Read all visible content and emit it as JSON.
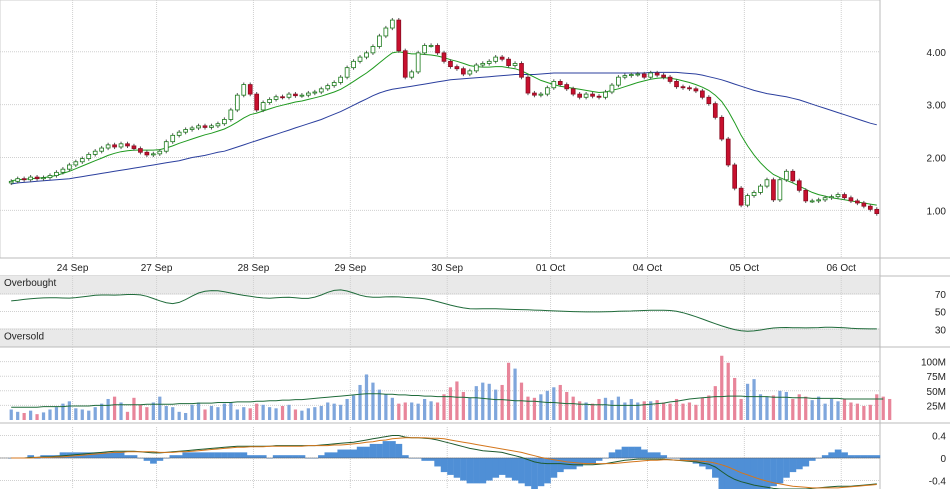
{
  "chart_data": [
    {
      "type": "candlestick",
      "panel": "price",
      "y_ticks": [
        "4.00",
        "3.00",
        "2.00",
        "1.00"
      ],
      "y_tick_values": [
        4,
        3,
        2,
        1
      ],
      "ylim": [
        0.1,
        4.98
      ],
      "x_labels": [
        "24 Sep",
        "27 Sep",
        "28 Sep",
        "29 Sep",
        "30 Sep",
        "01 Oct",
        "04 Oct",
        "05 Oct",
        "06 Oct"
      ],
      "closes": [
        1.55,
        1.6,
        1.58,
        1.63,
        1.6,
        1.62,
        1.66,
        1.72,
        1.78,
        1.86,
        1.92,
        1.98,
        2.06,
        2.12,
        2.18,
        2.24,
        2.2,
        2.26,
        2.22,
        2.17,
        2.1,
        2.05,
        2.07,
        2.12,
        2.3,
        2.42,
        2.48,
        2.53,
        2.56,
        2.6,
        2.57,
        2.6,
        2.64,
        2.72,
        2.9,
        3.18,
        3.38,
        3.2,
        2.9,
        3.04,
        3.1,
        3.15,
        3.14,
        3.2,
        3.17,
        3.18,
        3.22,
        3.24,
        3.3,
        3.36,
        3.42,
        3.52,
        3.7,
        3.82,
        3.9,
        3.98,
        4.1,
        4.3,
        4.45,
        4.6,
        4.02,
        3.52,
        3.62,
        3.98,
        4.12,
        4.12,
        3.98,
        3.82,
        3.72,
        3.68,
        3.58,
        3.64,
        3.75,
        3.78,
        3.82,
        3.9,
        3.86,
        3.74,
        3.78,
        3.52,
        3.22,
        3.18,
        3.2,
        3.32,
        3.44,
        3.38,
        3.3,
        3.2,
        3.14,
        3.2,
        3.16,
        3.14,
        3.24,
        3.37,
        3.52,
        3.55,
        3.57,
        3.58,
        3.52,
        3.6,
        3.56,
        3.52,
        3.44,
        3.34,
        3.32,
        3.3,
        3.26,
        3.14,
        3.02,
        2.76,
        2.35,
        1.86,
        1.42,
        1.1,
        1.28,
        1.34,
        1.46,
        1.58,
        1.2,
        1.58,
        1.74,
        1.56,
        1.38,
        1.18,
        1.18,
        1.2,
        1.24,
        1.26,
        1.3,
        1.24,
        1.18,
        1.14,
        1.08,
        1.02,
        0.94
      ],
      "series": [
        {
          "name": "short moving average",
          "values": [
            1.56,
            1.58,
            1.59,
            1.6,
            1.61,
            1.62,
            1.64,
            1.66,
            1.7,
            1.74,
            1.79,
            1.84,
            1.89,
            1.94,
            1.99,
            2.04,
            2.08,
            2.11,
            2.13,
            2.14,
            2.14,
            2.14,
            2.14,
            2.15,
            2.18,
            2.22,
            2.27,
            2.31,
            2.35,
            2.39,
            2.43,
            2.46,
            2.5,
            2.54,
            2.6,
            2.67,
            2.75,
            2.81,
            2.84,
            2.88,
            2.92,
            2.96,
            2.99,
            3.02,
            3.05,
            3.07,
            3.1,
            3.13,
            3.16,
            3.2,
            3.24,
            3.29,
            3.36,
            3.44,
            3.52,
            3.6,
            3.69,
            3.79,
            3.89,
            3.98,
            4.0,
            3.98,
            3.96,
            3.96,
            3.95,
            3.94,
            3.92,
            3.89,
            3.85,
            3.82,
            3.78,
            3.74,
            3.72,
            3.71,
            3.71,
            3.72,
            3.72,
            3.7,
            3.68,
            3.64,
            3.58,
            3.52,
            3.46,
            3.42,
            3.38,
            3.35,
            3.33,
            3.31,
            3.29,
            3.27,
            3.25,
            3.23,
            3.24,
            3.27,
            3.3,
            3.34,
            3.38,
            3.42,
            3.45,
            3.48,
            3.5,
            3.51,
            3.5,
            3.48,
            3.45,
            3.42,
            3.38,
            3.33,
            3.27,
            3.18,
            3.06,
            2.88,
            2.66,
            2.42,
            2.22,
            2.05,
            1.9,
            1.78,
            1.68,
            1.62,
            1.57,
            1.52,
            1.46,
            1.4,
            1.34,
            1.3,
            1.27,
            1.24,
            1.22,
            1.2,
            1.18,
            1.16,
            1.14,
            1.12,
            1.1
          ]
        },
        {
          "name": "long moving average",
          "values": [
            1.5,
            1.52,
            1.53,
            1.54,
            1.55,
            1.56,
            1.57,
            1.58,
            1.59,
            1.6,
            1.62,
            1.64,
            1.66,
            1.68,
            1.7,
            1.72,
            1.74,
            1.76,
            1.78,
            1.8,
            1.82,
            1.84,
            1.86,
            1.88,
            1.9,
            1.92,
            1.94,
            1.97,
            2.0,
            2.02,
            2.04,
            2.07,
            2.1,
            2.12,
            2.16,
            2.2,
            2.24,
            2.28,
            2.32,
            2.36,
            2.4,
            2.44,
            2.48,
            2.52,
            2.56,
            2.6,
            2.64,
            2.68,
            2.72,
            2.77,
            2.82,
            2.87,
            2.93,
            2.99,
            3.05,
            3.11,
            3.17,
            3.22,
            3.26,
            3.29,
            3.31,
            3.33,
            3.35,
            3.37,
            3.39,
            3.41,
            3.43,
            3.45,
            3.47,
            3.48,
            3.49,
            3.5,
            3.51,
            3.52,
            3.53,
            3.54,
            3.55,
            3.56,
            3.57,
            3.57,
            3.57,
            3.57,
            3.58,
            3.59,
            3.6,
            3.6,
            3.6,
            3.6,
            3.6,
            3.6,
            3.6,
            3.6,
            3.6,
            3.6,
            3.6,
            3.6,
            3.6,
            3.6,
            3.6,
            3.61,
            3.61,
            3.61,
            3.61,
            3.61,
            3.6,
            3.59,
            3.58,
            3.56,
            3.53,
            3.5,
            3.47,
            3.43,
            3.39,
            3.35,
            3.31,
            3.27,
            3.24,
            3.21,
            3.19,
            3.17,
            3.15,
            3.12,
            3.09,
            3.05,
            3.01,
            2.97,
            2.93,
            2.89,
            2.85,
            2.81,
            2.77,
            2.73,
            2.69,
            2.65,
            2.62
          ]
        }
      ]
    },
    {
      "type": "line",
      "panel": "oscillator",
      "y_ticks": [
        "70",
        "50",
        "30"
      ],
      "y_tick_values": [
        70,
        50,
        30
      ],
      "ylim": [
        10,
        90
      ],
      "bands": {
        "top": "Overbought",
        "bottom": "Oversold"
      },
      "values": [
        62,
        62.6,
        63.6,
        64.3,
        64.9,
        65.3,
        65.4,
        65.4,
        65.2,
        65.1,
        65.7,
        66.5,
        67.4,
        68.2,
        68.6,
        68.6,
        68.5,
        68.7,
        69.1,
        69.1,
        68.7,
        67.1,
        64.6,
        62.1,
        59.9,
        58.9,
        60.2,
        63.4,
        67.4,
        70.9,
        72.8,
        73.5,
        73.3,
        72.3,
        70.8,
        69.4,
        68.1,
        67.1,
        66.1,
        65.3,
        65,
        65.4,
        65.9,
        66,
        65.4,
        64.8,
        64.8,
        66.2,
        68.6,
        71.6,
        73.8,
        74.3,
        73.1,
        70.8,
        68.4,
        66.8,
        66.1,
        66.1,
        66.5,
        66.6,
        66.4,
        65.9,
        65.5,
        65.1,
        64.4,
        63,
        61.2,
        59.1,
        57.2,
        55.5,
        54.1,
        53.2,
        52.9,
        53,
        53.1,
        53,
        52.8,
        52.5,
        52.3,
        52.1,
        51.9,
        51.6,
        51.3,
        51,
        50.7,
        50.4,
        50.1,
        49.9,
        49.7,
        49.6,
        49.6,
        49.6,
        49.7,
        49.9,
        50.2,
        50.4,
        50.6,
        50.9,
        51.1,
        51.3,
        51.5,
        51.5,
        51.1,
        50.2,
        48.6,
        46.5,
        44.1,
        41.5,
        38.9,
        36.3,
        33.8,
        31.5,
        29.6,
        28.3,
        27.8,
        28.1,
        29.2,
        30.4,
        31.4,
        31.9,
        32,
        31.8,
        31.6,
        31.5,
        31.7,
        31.9,
        32.2,
        32.2,
        32,
        31.6,
        31.1,
        30.7,
        30.5,
        30.4,
        30.4
      ]
    },
    {
      "type": "bar",
      "panel": "volume",
      "y_ticks": [
        "100M",
        "75M",
        "50M",
        "25M"
      ],
      "y_tick_values": [
        100,
        75,
        50,
        25
      ],
      "ylim": [
        0,
        125
      ],
      "bar_colors": [
        "up",
        "down"
      ],
      "values": [
        18,
        14,
        12,
        16,
        10,
        13,
        18,
        22,
        28,
        32,
        20,
        18,
        16,
        22,
        28,
        36,
        40,
        30,
        14,
        38,
        26,
        22,
        30,
        40,
        24,
        22,
        14,
        12,
        26,
        30,
        18,
        24,
        22,
        28,
        30,
        18,
        22,
        20,
        28,
        26,
        22,
        20,
        24,
        26,
        18,
        16,
        20,
        22,
        24,
        30,
        28,
        26,
        36,
        42,
        60,
        78,
        64,
        52,
        44,
        38,
        28,
        30,
        30,
        28,
        36,
        32,
        30,
        44,
        56,
        66,
        48,
        38,
        58,
        64,
        62,
        52,
        60,
        98,
        88,
        64,
        40,
        38,
        44,
        50,
        56,
        60,
        48,
        40,
        32,
        30,
        28,
        36,
        38,
        34,
        40,
        30,
        36,
        30,
        32,
        32,
        34,
        30,
        28,
        36,
        28,
        30,
        26,
        38,
        42,
        58,
        110,
        98,
        72,
        36,
        62,
        70,
        44,
        40,
        42,
        50,
        48,
        36,
        44,
        40,
        34,
        40,
        28,
        36,
        32,
        36,
        30,
        28,
        24,
        26,
        44,
        40,
        36
      ],
      "moving_average": [
        22,
        22,
        22,
        22,
        22,
        23,
        23,
        23,
        23,
        24,
        24,
        24,
        24,
        25,
        25,
        25,
        26,
        26,
        26,
        26,
        26,
        27,
        27,
        27,
        27,
        27,
        28,
        28,
        28,
        29,
        29,
        29,
        30,
        30,
        30,
        31,
        31,
        31,
        32,
        32,
        33,
        33,
        34,
        34,
        35,
        35,
        36,
        37,
        38,
        39,
        40,
        41,
        42,
        43,
        44,
        45,
        45,
        45,
        44,
        44,
        43,
        43,
        42,
        42,
        41,
        41,
        40,
        40,
        40,
        39,
        39,
        38,
        38,
        37,
        36,
        35,
        35,
        34,
        33,
        33,
        32,
        32,
        31,
        30,
        30,
        29,
        28,
        28,
        27,
        27,
        26,
        26,
        26,
        25,
        25,
        25,
        25,
        25,
        26,
        27,
        28,
        29,
        31,
        32,
        34,
        36,
        37,
        38,
        39,
        40,
        40,
        41,
        41,
        41,
        40,
        40,
        40,
        40,
        39,
        39,
        39,
        38,
        38,
        38,
        37,
        37,
        37,
        37,
        37,
        36,
        36,
        36,
        36,
        36,
        36,
        36
      ]
    },
    {
      "type": "macd",
      "panel": "macd",
      "y_ticks": [
        "0.4",
        "0",
        "-0.4"
      ],
      "y_tick_values": [
        0.4,
        0,
        -0.4
      ],
      "ylim": [
        -0.55,
        0.55
      ],
      "series": [
        {
          "name": "macd",
          "values": [
            0,
            0,
            0,
            0.01,
            0.01,
            0.02,
            0.02,
            0.03,
            0.04,
            0.05,
            0.06,
            0.07,
            0.08,
            0.09,
            0.1,
            0.11,
            0.12,
            0.12,
            0.12,
            0.12,
            0.11,
            0.1,
            0.09,
            0.09,
            0.1,
            0.11,
            0.12,
            0.13,
            0.14,
            0.15,
            0.16,
            0.17,
            0.18,
            0.19,
            0.2,
            0.21,
            0.21,
            0.21,
            0.21,
            0.21,
            0.21,
            0.22,
            0.22,
            0.22,
            0.22,
            0.22,
            0.22,
            0.22,
            0.23,
            0.24,
            0.25,
            0.26,
            0.27,
            0.28,
            0.3,
            0.32,
            0.34,
            0.36,
            0.38,
            0.4,
            0.4,
            0.37,
            0.36,
            0.36,
            0.35,
            0.34,
            0.32,
            0.29,
            0.26,
            0.23,
            0.2,
            0.17,
            0.15,
            0.13,
            0.12,
            0.11,
            0.1,
            0.07,
            0.04,
            0.01,
            -0.03,
            -0.07,
            -0.09,
            -0.1,
            -0.1,
            -0.1,
            -0.11,
            -0.12,
            -0.12,
            -0.12,
            -0.12,
            -0.11,
            -0.1,
            -0.08,
            -0.06,
            -0.04,
            -0.03,
            -0.02,
            -0.02,
            -0.02,
            -0.02,
            -0.02,
            -0.03,
            -0.04,
            -0.05,
            -0.06,
            -0.07,
            -0.09,
            -0.11,
            -0.16,
            -0.24,
            -0.32,
            -0.38,
            -0.42,
            -0.45,
            -0.48,
            -0.5,
            -0.52,
            -0.54,
            -0.55,
            -0.55,
            -0.55,
            -0.55,
            -0.55,
            -0.54,
            -0.53,
            -0.52,
            -0.51,
            -0.5,
            -0.5,
            -0.5,
            -0.49,
            -0.48,
            -0.47,
            -0.46
          ]
        },
        {
          "name": "signal",
          "values": [
            0,
            0,
            0,
            0,
            0.01,
            0.01,
            0.01,
            0.02,
            0.02,
            0.03,
            0.04,
            0.05,
            0.06,
            0.07,
            0.08,
            0.09,
            0.1,
            0.1,
            0.11,
            0.11,
            0.11,
            0.11,
            0.11,
            0.1,
            0.1,
            0.1,
            0.11,
            0.11,
            0.12,
            0.13,
            0.14,
            0.15,
            0.16,
            0.17,
            0.18,
            0.19,
            0.19,
            0.2,
            0.2,
            0.2,
            0.21,
            0.21,
            0.21,
            0.21,
            0.21,
            0.21,
            0.22,
            0.22,
            0.22,
            0.22,
            0.23,
            0.23,
            0.24,
            0.25,
            0.26,
            0.28,
            0.29,
            0.31,
            0.32,
            0.34,
            0.35,
            0.36,
            0.36,
            0.36,
            0.36,
            0.35,
            0.35,
            0.34,
            0.32,
            0.3,
            0.28,
            0.26,
            0.24,
            0.22,
            0.2,
            0.18,
            0.16,
            0.14,
            0.12,
            0.1,
            0.07,
            0.04,
            0.01,
            -0.01,
            -0.03,
            -0.05,
            -0.07,
            -0.08,
            -0.09,
            -0.1,
            -0.1,
            -0.1,
            -0.1,
            -0.1,
            -0.09,
            -0.08,
            -0.07,
            -0.06,
            -0.05,
            -0.04,
            -0.04,
            -0.03,
            -0.03,
            -0.04,
            -0.04,
            -0.05,
            -0.05,
            -0.06,
            -0.07,
            -0.09,
            -0.12,
            -0.16,
            -0.21,
            -0.26,
            -0.3,
            -0.34,
            -0.38,
            -0.41,
            -0.44,
            -0.46,
            -0.48,
            -0.5,
            -0.51,
            -0.52,
            -0.53,
            -0.53,
            -0.53,
            -0.53,
            -0.53,
            -0.52,
            -0.51,
            -0.5,
            -0.49,
            -0.48,
            -0.47
          ]
        }
      ]
    }
  ]
}
